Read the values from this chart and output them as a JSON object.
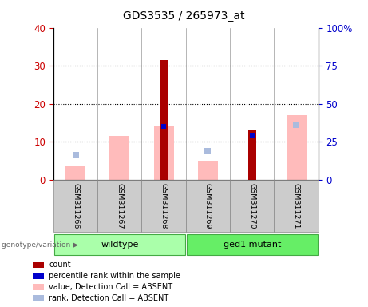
{
  "title": "GDS3535 / 265973_at",
  "samples": [
    "GSM311266",
    "GSM311267",
    "GSM311268",
    "GSM311269",
    "GSM311270",
    "GSM311271"
  ],
  "left_yaxis": {
    "min": 0,
    "max": 40,
    "ticks": [
      0,
      10,
      20,
      30,
      40
    ],
    "color": "#cc0000"
  },
  "right_yaxis": {
    "min": 0,
    "max": 100,
    "ticks": [
      0,
      25,
      50,
      75,
      100
    ],
    "color": "#0000cc"
  },
  "bars": {
    "count": [
      null,
      null,
      31.5,
      null,
      13.2,
      null
    ],
    "percentile_rank": [
      null,
      null,
      14.0,
      null,
      11.8,
      null
    ],
    "value_absent": [
      3.5,
      11.5,
      14.0,
      5.0,
      null,
      17.0
    ],
    "rank_absent": [
      6.5,
      null,
      null,
      7.5,
      null,
      14.5
    ]
  },
  "count_color": "#aa0000",
  "percentile_color": "#0000cc",
  "value_absent_color": "#ffbbbb",
  "rank_absent_color": "#aabbdd",
  "bg_sample": "#cccccc",
  "bg_group_wt": "#aaffaa",
  "bg_group_mut": "#66ee66",
  "group_ranges": [
    [
      0,
      3,
      "wildtype"
    ],
    [
      3,
      6,
      "ged1 mutant"
    ]
  ],
  "legend_items": [
    [
      "#aa0000",
      "count"
    ],
    [
      "#0000cc",
      "percentile rank within the sample"
    ],
    [
      "#ffbbbb",
      "value, Detection Call = ABSENT"
    ],
    [
      "#aabbdd",
      "rank, Detection Call = ABSENT"
    ]
  ]
}
